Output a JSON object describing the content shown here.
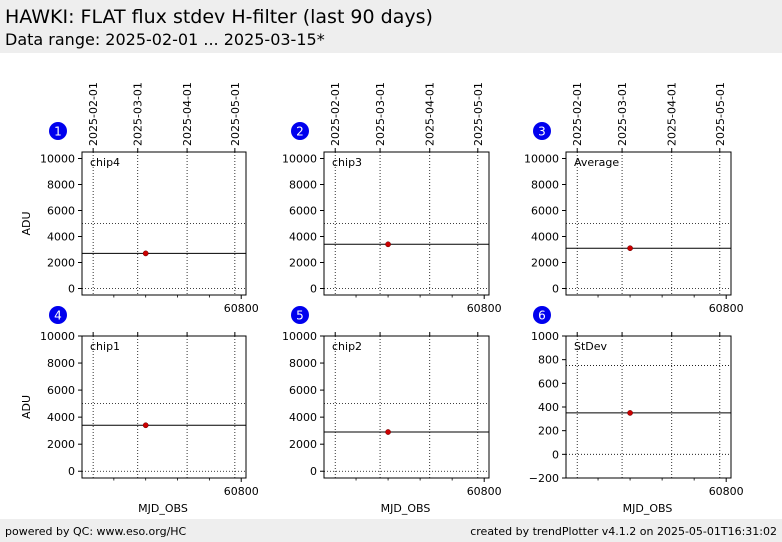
{
  "header": {
    "title": "HAWKI: FLAT flux stdev H-filter (last 90 days)",
    "subtitle": "Data range: 2025-02-01 ... 2025-03-15*"
  },
  "footer": {
    "left": "powered by QC: www.eso.org/HC",
    "right": "created by trendPlotter v4.1.2 on 2025-05-01T16:31:02"
  },
  "colors": {
    "marker": "#cc0000",
    "badge": "#0000ee",
    "header_bg": "#eeeeee"
  },
  "chart_data": [
    {
      "id": "1",
      "type": "scatter",
      "label": "chip4",
      "ylabel": "ADU",
      "xlabel": "",
      "ylim": [
        -500,
        10500
      ],
      "yticks": [
        0,
        2000,
        4000,
        6000,
        8000,
        10000
      ],
      "hlines_solid": [
        2700
      ],
      "hlines_dotted": [
        5000,
        0
      ],
      "points": [
        {
          "x": 60740,
          "y": 2700
        }
      ]
    },
    {
      "id": "2",
      "type": "scatter",
      "label": "chip3",
      "ylabel": "",
      "xlabel": "",
      "ylim": [
        -500,
        10500
      ],
      "yticks": [
        0,
        2000,
        4000,
        6000,
        8000,
        10000
      ],
      "hlines_solid": [
        3400
      ],
      "hlines_dotted": [
        5000,
        0
      ],
      "points": [
        {
          "x": 60740,
          "y": 3400
        }
      ]
    },
    {
      "id": "3",
      "type": "scatter",
      "label": "Average",
      "ylabel": "",
      "xlabel": "",
      "ylim": [
        -500,
        10500
      ],
      "yticks": [
        0,
        2000,
        4000,
        6000,
        8000,
        10000
      ],
      "hlines_solid": [
        3100
      ],
      "hlines_dotted": [
        5000,
        0
      ],
      "points": [
        {
          "x": 60740,
          "y": 3100
        }
      ]
    },
    {
      "id": "4",
      "type": "scatter",
      "label": "chip1",
      "ylabel": "ADU",
      "xlabel": "MJD_OBS",
      "ylim": [
        -500,
        10000
      ],
      "yticks": [
        0,
        2000,
        4000,
        6000,
        8000,
        10000
      ],
      "hlines_solid": [
        3400
      ],
      "hlines_dotted": [
        5000,
        0
      ],
      "points": [
        {
          "x": 60740,
          "y": 3400
        }
      ]
    },
    {
      "id": "5",
      "type": "scatter",
      "label": "chip2",
      "ylabel": "",
      "xlabel": "MJD_OBS",
      "ylim": [
        -500,
        10000
      ],
      "yticks": [
        0,
        2000,
        4000,
        6000,
        8000,
        10000
      ],
      "hlines_solid": [
        2900
      ],
      "hlines_dotted": [
        5000,
        0
      ],
      "points": [
        {
          "x": 60740,
          "y": 2900
        }
      ]
    },
    {
      "id": "6",
      "type": "scatter",
      "label": "StDev",
      "ylabel": "",
      "xlabel": "MJD_OBS",
      "ylim": [
        -200,
        1000
      ],
      "yticks": [
        -200,
        0,
        200,
        400,
        600,
        800,
        1000
      ],
      "hlines_solid": [
        350
      ],
      "hlines_dotted": [
        750,
        0
      ],
      "points": [
        {
          "x": 60740,
          "y": 350
        }
      ]
    }
  ],
  "x_axis": {
    "xlim": [
      60700,
      60803
    ],
    "bottom_ticks": [
      60800
    ],
    "minor_ticks": [
      60720,
      60740,
      60760,
      60780
    ],
    "top_dates": [
      {
        "label": "2025-02-01",
        "mjd": 60707
      },
      {
        "label": "2025-03-01",
        "mjd": 60735
      },
      {
        "label": "2025-04-01",
        "mjd": 60766
      },
      {
        "label": "2025-05-01",
        "mjd": 60796
      }
    ]
  }
}
